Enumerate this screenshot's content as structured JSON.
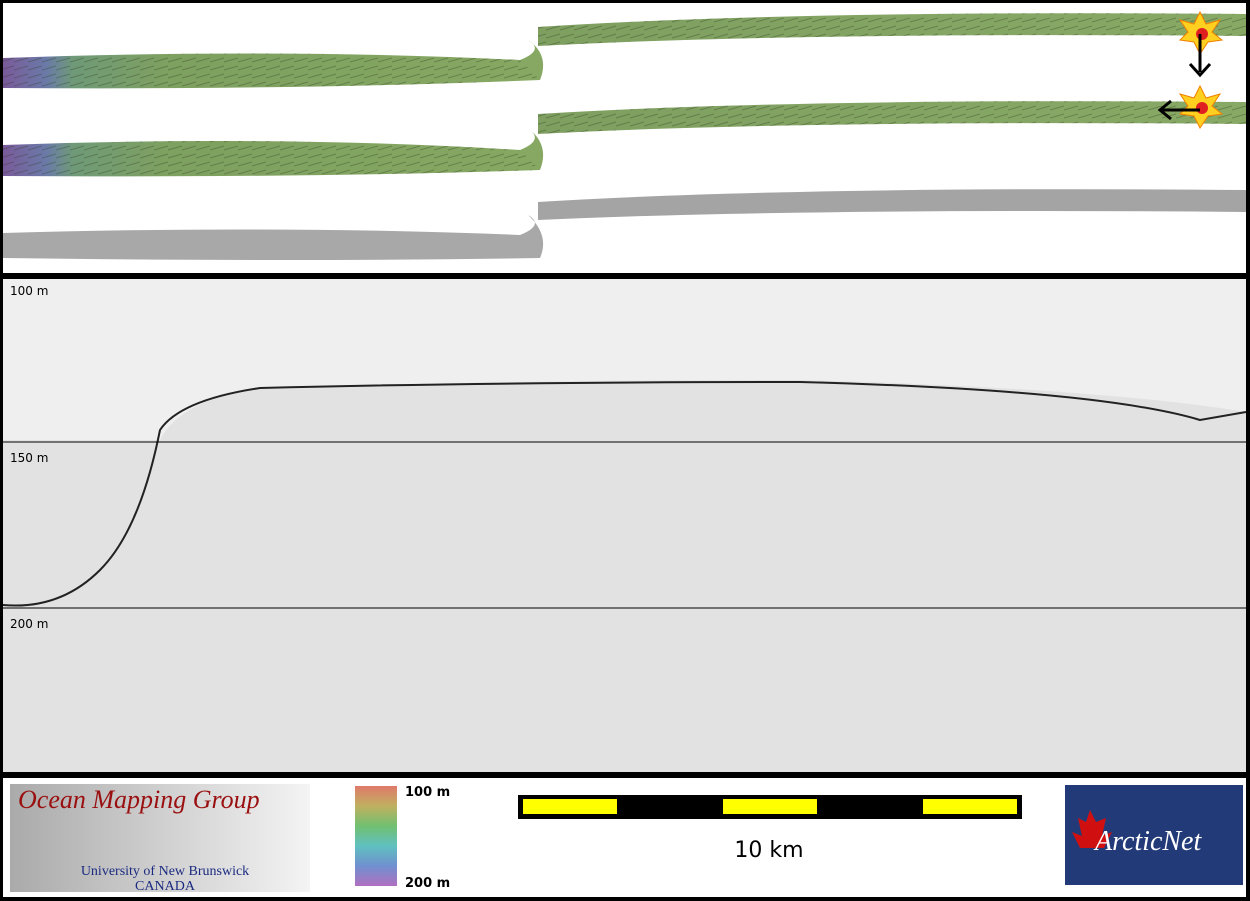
{
  "profile": {
    "depth_labels": [
      "100 m",
      "150 m",
      "200 m"
    ]
  },
  "legend": {
    "top": "100 m",
    "bottom": "200 m"
  },
  "scale_bar": {
    "label": "10 km"
  },
  "logos": {
    "omg_title": "Ocean Mapping Group",
    "omg_university": "University of New Brunswick",
    "omg_country": "CANADA",
    "arcticnet": "ArcticNet"
  }
}
